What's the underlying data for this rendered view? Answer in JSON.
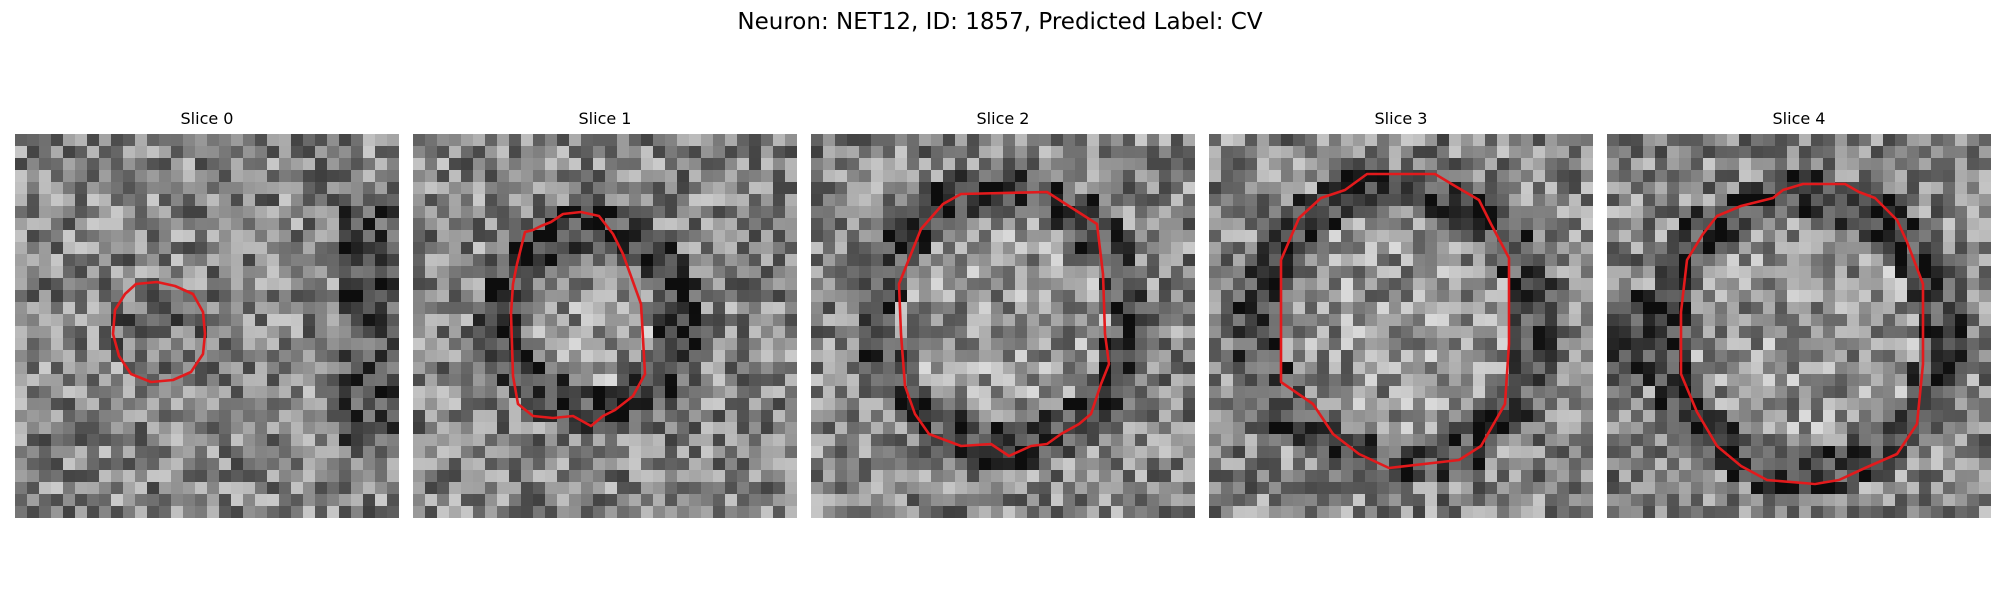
{
  "figure": {
    "title": "Neuron: NET12, ID: 1857, Predicted Label: CV"
  },
  "colors": {
    "contour": "#e31a1c"
  },
  "panels": [
    {
      "title": "Slice 0",
      "seed": 11,
      "image_description": "grayscale micrograph patch with a faint dark vesicle region",
      "contrast": 0.55
    },
    {
      "title": "Slice 1",
      "seed": 23,
      "image_description": "grayscale micrograph patch with a dark ring around a lighter core",
      "contrast": 0.85
    },
    {
      "title": "Slice 2",
      "seed": 37,
      "image_description": "grayscale micrograph patch with a large light vesicle outlined by a dark ring",
      "contrast": 0.8
    },
    {
      "title": "Slice 3",
      "seed": 41,
      "image_description": "grayscale micrograph patch with a large noisy vesicle",
      "contrast": 0.75
    },
    {
      "title": "Slice 4",
      "seed": 53,
      "image_description": "grayscale micrograph patch with a bright vesicle core and dark rim",
      "contrast": 0.85
    }
  ]
}
